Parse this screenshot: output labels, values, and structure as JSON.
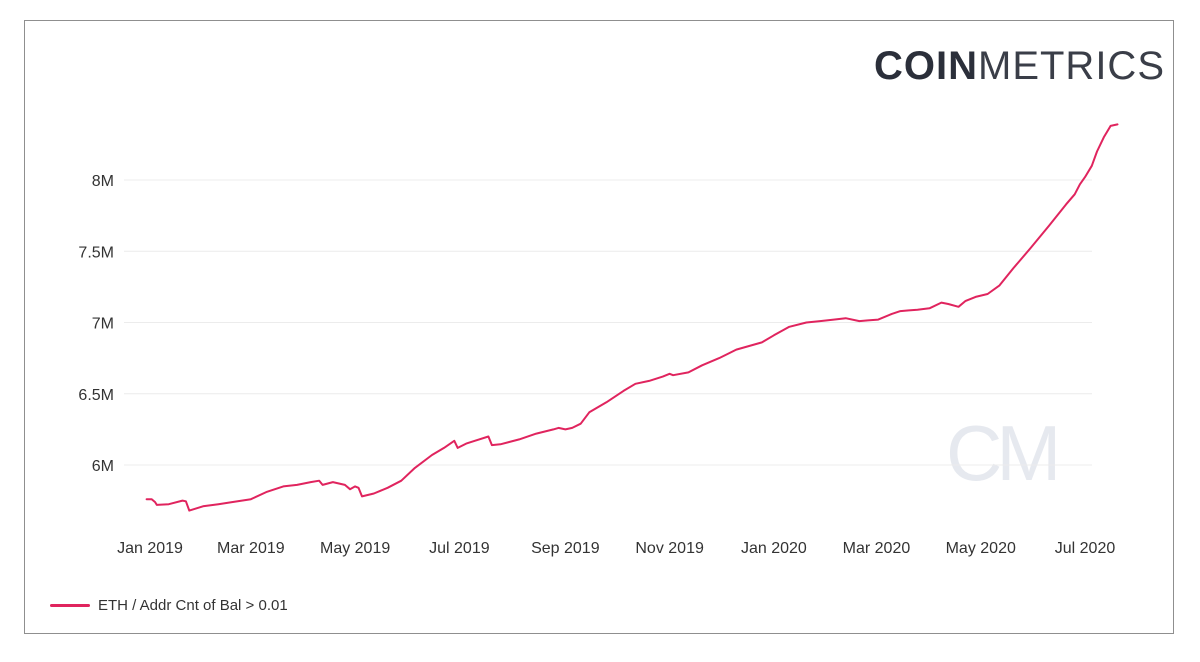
{
  "brand": {
    "logo_bold": "COIN",
    "logo_light": "METRICS",
    "watermark": "CM"
  },
  "colors": {
    "series": "#e0245e",
    "grid": "#ececec",
    "frame": "#8f8f8f",
    "watermark": "#e6e9ef"
  },
  "chart_data": {
    "type": "line",
    "title": "",
    "xlabel": "",
    "ylabel": "",
    "grid": true,
    "legend": "bottom-left",
    "ylim": [
      5650000,
      8450000
    ],
    "xlim": [
      "2018-12-30",
      "2020-07-09"
    ],
    "y_ticks": [
      {
        "value": 6000000,
        "label": "6M"
      },
      {
        "value": 6500000,
        "label": "6.5M"
      },
      {
        "value": 7000000,
        "label": "7M"
      },
      {
        "value": 7500000,
        "label": "7.5M"
      },
      {
        "value": 8000000,
        "label": "8M"
      }
    ],
    "x_ticks": [
      {
        "date": "2019-01-01",
        "label": "Jan 2019"
      },
      {
        "date": "2019-03-01",
        "label": "Mar 2019"
      },
      {
        "date": "2019-05-01",
        "label": "May 2019"
      },
      {
        "date": "2019-07-01",
        "label": "Jul 2019"
      },
      {
        "date": "2019-09-01",
        "label": "Sep 2019"
      },
      {
        "date": "2019-11-01",
        "label": "Nov 2019"
      },
      {
        "date": "2020-01-01",
        "label": "Jan 2020"
      },
      {
        "date": "2020-03-01",
        "label": "Mar 2020"
      },
      {
        "date": "2020-05-01",
        "label": "May 2020"
      },
      {
        "date": "2020-07-01",
        "label": "Jul 2020"
      }
    ],
    "series": [
      {
        "name": "ETH / Addr Cnt of Bal > 0.01",
        "color": "#e0245e",
        "points": [
          [
            "2018-12-30",
            5760000
          ],
          [
            "2019-01-02",
            5760000
          ],
          [
            "2019-01-04",
            5740000
          ],
          [
            "2019-01-05",
            5720000
          ],
          [
            "2019-01-12",
            5725000
          ],
          [
            "2019-01-20",
            5750000
          ],
          [
            "2019-01-22",
            5745000
          ],
          [
            "2019-01-24",
            5680000
          ],
          [
            "2019-02-01",
            5710000
          ],
          [
            "2019-02-10",
            5725000
          ],
          [
            "2019-02-18",
            5740000
          ],
          [
            "2019-03-01",
            5760000
          ],
          [
            "2019-03-10",
            5810000
          ],
          [
            "2019-03-20",
            5850000
          ],
          [
            "2019-03-28",
            5860000
          ],
          [
            "2019-04-05",
            5880000
          ],
          [
            "2019-04-10",
            5890000
          ],
          [
            "2019-04-12",
            5860000
          ],
          [
            "2019-04-18",
            5880000
          ],
          [
            "2019-04-25",
            5860000
          ],
          [
            "2019-04-28",
            5830000
          ],
          [
            "2019-05-01",
            5850000
          ],
          [
            "2019-05-03",
            5840000
          ],
          [
            "2019-05-05",
            5780000
          ],
          [
            "2019-05-12",
            5800000
          ],
          [
            "2019-05-20",
            5840000
          ],
          [
            "2019-05-28",
            5890000
          ],
          [
            "2019-06-05",
            5980000
          ],
          [
            "2019-06-15",
            6070000
          ],
          [
            "2019-06-22",
            6120000
          ],
          [
            "2019-06-28",
            6170000
          ],
          [
            "2019-06-30",
            6120000
          ],
          [
            "2019-07-05",
            6150000
          ],
          [
            "2019-07-10",
            6170000
          ],
          [
            "2019-07-18",
            6200000
          ],
          [
            "2019-07-20",
            6140000
          ],
          [
            "2019-07-25",
            6145000
          ],
          [
            "2019-08-05",
            6180000
          ],
          [
            "2019-08-15",
            6220000
          ],
          [
            "2019-08-25",
            6250000
          ],
          [
            "2019-08-28",
            6260000
          ],
          [
            "2019-09-01",
            6250000
          ],
          [
            "2019-09-05",
            6260000
          ],
          [
            "2019-09-10",
            6290000
          ],
          [
            "2019-09-15",
            6370000
          ],
          [
            "2019-09-25",
            6440000
          ],
          [
            "2019-10-05",
            6520000
          ],
          [
            "2019-10-12",
            6570000
          ],
          [
            "2019-10-20",
            6590000
          ],
          [
            "2019-10-28",
            6620000
          ],
          [
            "2019-11-01",
            6640000
          ],
          [
            "2019-11-03",
            6630000
          ],
          [
            "2019-11-12",
            6650000
          ],
          [
            "2019-11-20",
            6700000
          ],
          [
            "2019-11-30",
            6750000
          ],
          [
            "2019-12-05",
            6780000
          ],
          [
            "2019-12-10",
            6810000
          ],
          [
            "2019-12-25",
            6860000
          ],
          [
            "2020-01-01",
            6910000
          ],
          [
            "2020-01-10",
            6970000
          ],
          [
            "2020-01-20",
            7000000
          ],
          [
            "2020-01-28",
            7010000
          ],
          [
            "2020-02-05",
            7020000
          ],
          [
            "2020-02-12",
            7030000
          ],
          [
            "2020-02-20",
            7010000
          ],
          [
            "2020-02-25",
            7015000
          ],
          [
            "2020-03-02",
            7020000
          ],
          [
            "2020-03-10",
            7060000
          ],
          [
            "2020-03-15",
            7080000
          ],
          [
            "2020-03-20",
            7085000
          ],
          [
            "2020-03-25",
            7090000
          ],
          [
            "2020-04-01",
            7100000
          ],
          [
            "2020-04-08",
            7140000
          ],
          [
            "2020-04-12",
            7130000
          ],
          [
            "2020-04-18",
            7110000
          ],
          [
            "2020-04-22",
            7150000
          ],
          [
            "2020-04-28",
            7180000
          ],
          [
            "2020-05-05",
            7200000
          ],
          [
            "2020-05-12",
            7260000
          ],
          [
            "2020-05-20",
            7380000
          ],
          [
            "2020-05-30",
            7520000
          ],
          [
            "2020-06-10",
            7680000
          ],
          [
            "2020-06-20",
            7830000
          ],
          [
            "2020-06-25",
            7900000
          ],
          [
            "2020-06-28",
            7970000
          ],
          [
            "2020-07-01",
            8020000
          ],
          [
            "2020-07-05",
            8100000
          ],
          [
            "2020-07-08",
            8200000
          ],
          [
            "2020-07-12",
            8300000
          ],
          [
            "2020-07-16",
            8380000
          ],
          [
            "2020-07-20",
            8390000
          ]
        ]
      }
    ]
  }
}
